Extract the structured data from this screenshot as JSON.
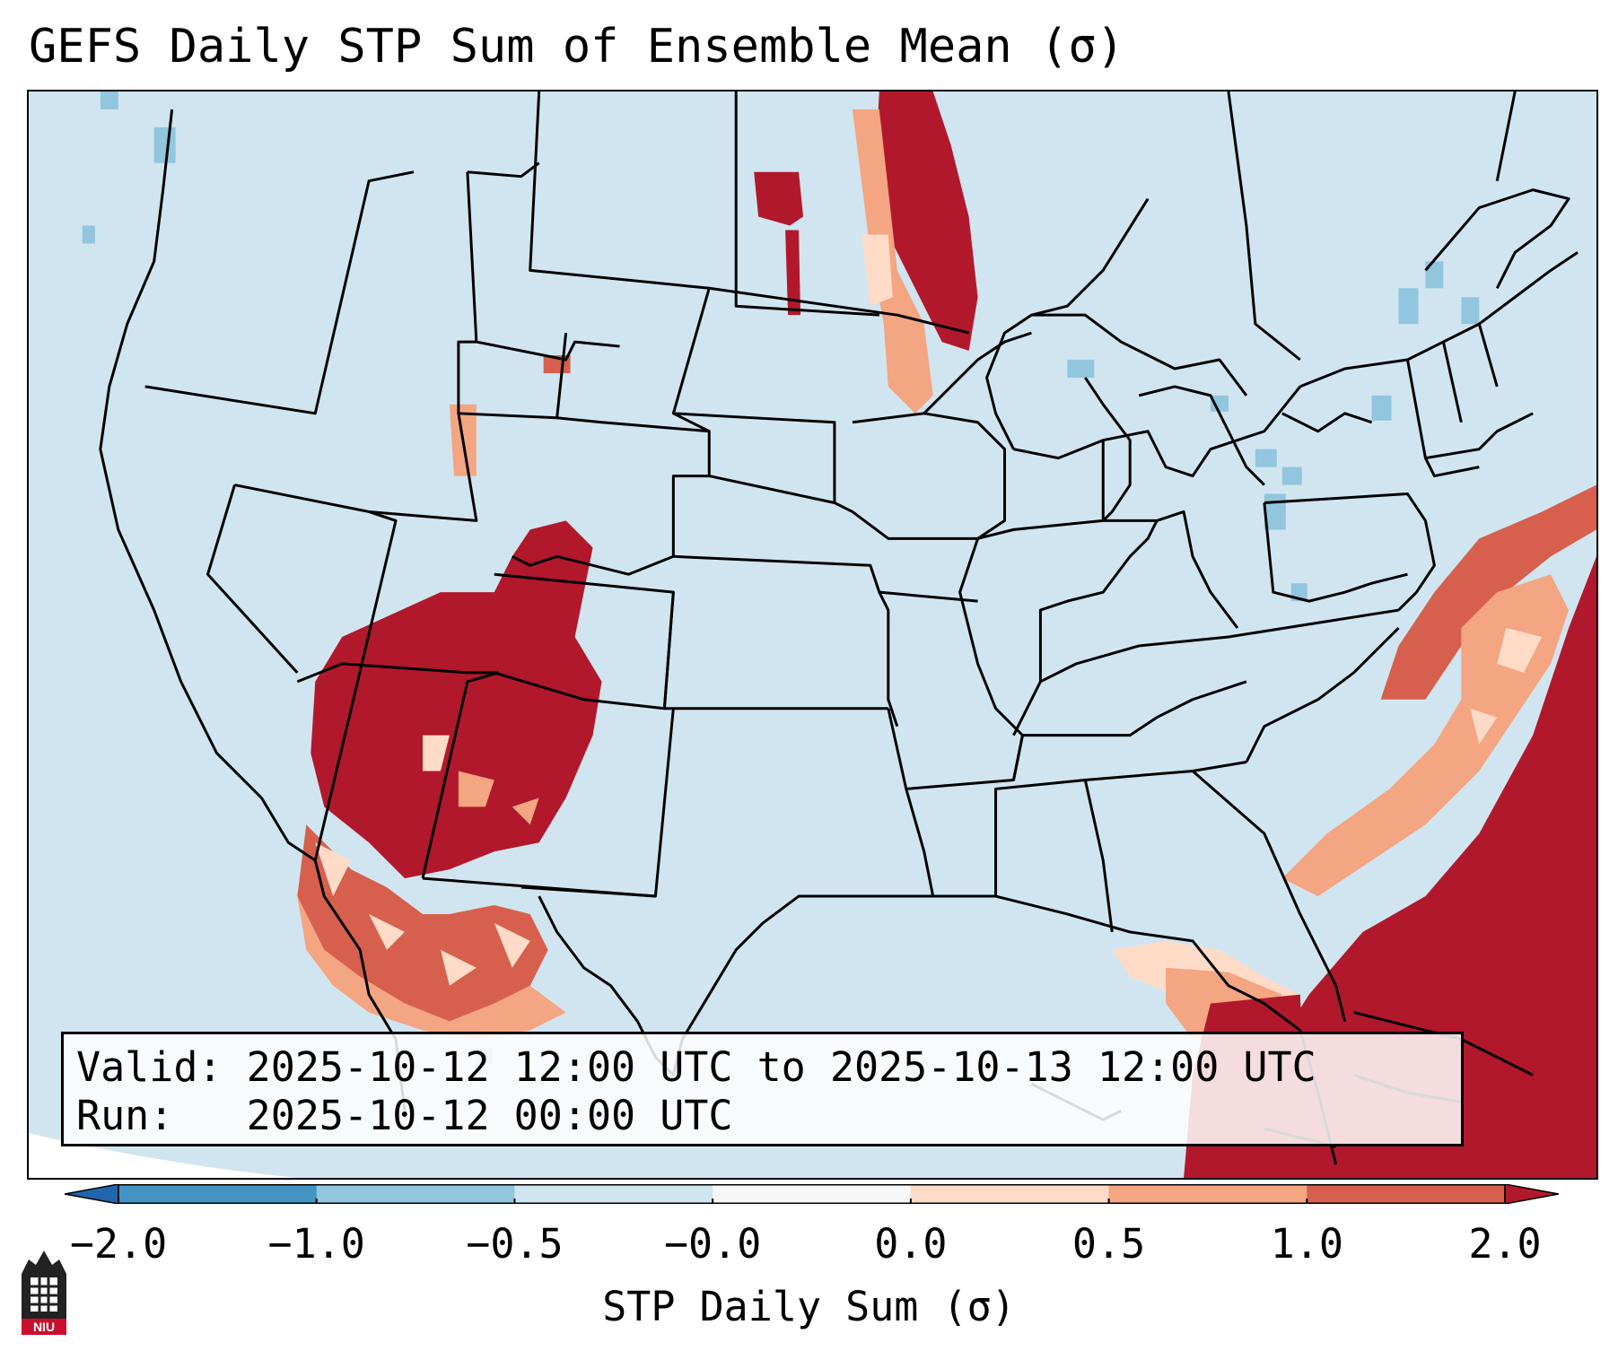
{
  "title": "GEFS Daily STP Sum of Ensemble Mean (σ)",
  "info": {
    "valid_line": "Valid: 2025-10-12 12:00 UTC to 2025-10-13 12:00 UTC",
    "run_line": "Run:   2025-10-12 00:00 UTC"
  },
  "colorbar": {
    "label": "STP Daily Sum (σ)",
    "ticks": [
      "−2.0",
      "−1.0",
      "−0.5",
      "−0.0",
      "0.0",
      "0.5",
      "1.0",
      "2.0"
    ],
    "colors": [
      "#2166ac",
      "#4393c3",
      "#92c5de",
      "#d1e5f0",
      "#f7f7f7",
      "#fddbc7",
      "#f4a582",
      "#d6604d",
      "#b2182b"
    ],
    "extend": "both"
  },
  "map": {
    "region": "Contiguous United States",
    "background_color": "#d1e5f0",
    "hotspots": [
      "Four Corners / Southwest",
      "Northern Plains",
      "Atlantic Ocean",
      "Gulf of Mexico / Florida / Caribbean"
    ]
  },
  "logo": {
    "text": "NIU"
  }
}
